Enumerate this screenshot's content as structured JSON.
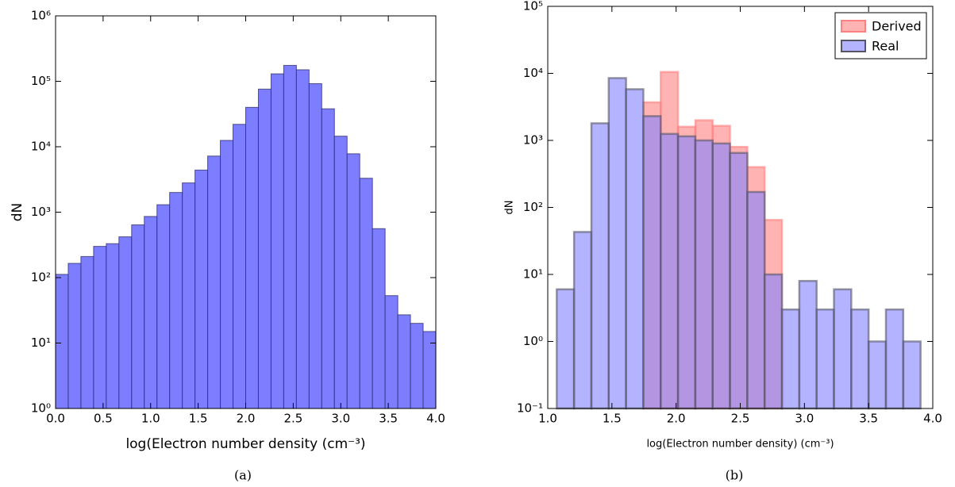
{
  "chart_data": [
    {
      "type": "histogram",
      "caption": "(a)",
      "ylabel": "dN",
      "xlabel": "log(Electron number density (cm⁻³)",
      "color": "#6666ff",
      "edgecolor": "#333366",
      "log_y": true,
      "bins": [
        0,
        0.1333,
        0.2667,
        0.4,
        0.5333,
        0.6667,
        0.8,
        0.9333,
        1.0667,
        1.2,
        1.3333,
        1.4667,
        1.6,
        1.7333,
        1.8667,
        2.0,
        2.1333,
        2.2667,
        2.4,
        2.5333,
        2.6667,
        2.8,
        2.9333,
        3.0667,
        3.2,
        3.3333,
        3.4667,
        3.6,
        3.7333,
        3.8667,
        4.0
      ],
      "values": [
        112,
        165,
        210,
        300,
        330,
        420,
        640,
        860,
        1300,
        2000,
        2800,
        4400,
        7200,
        12500,
        22000,
        40000,
        76000,
        130000,
        175000,
        150000,
        92000,
        38000,
        14500,
        7800,
        3300,
        560,
        53,
        27,
        20,
        15
      ],
      "xlim": [
        0,
        4
      ],
      "xticks": [
        {
          "value": 0,
          "label": "0.0"
        },
        {
          "value": 0.5,
          "label": "0.5"
        },
        {
          "value": 1,
          "label": "1.0"
        },
        {
          "value": 1.5,
          "label": "1.5"
        },
        {
          "value": 2,
          "label": "2.0"
        },
        {
          "value": 2.5,
          "label": "2.5"
        },
        {
          "value": 3,
          "label": "3.0"
        },
        {
          "value": 3.5,
          "label": "3.5"
        },
        {
          "value": 4,
          "label": "4.0"
        }
      ],
      "ylim": [
        1,
        1000000
      ],
      "yticks": [
        {
          "value": 1,
          "label": "10⁰"
        },
        {
          "value": 10,
          "label": "10¹"
        },
        {
          "value": 100,
          "label": "10²"
        },
        {
          "value": 1000,
          "label": "10³"
        },
        {
          "value": 10000,
          "label": "10⁴"
        },
        {
          "value": 100000,
          "label": "10⁵"
        },
        {
          "value": 1000000,
          "label": "10⁶"
        }
      ]
    },
    {
      "type": "histogram",
      "caption": "(b)",
      "ylabel": "dN",
      "xlabel": "log(Electron number density) (cm⁻³)",
      "log_y": true,
      "legend": "upper right",
      "series": [
        {
          "name": "Derived",
          "color": "#ff8080",
          "edgecolor": "#ff8080",
          "bins": [
            1.745,
            1.88,
            2.015,
            2.15,
            2.285,
            2.42,
            2.555,
            2.69,
            2.825
          ],
          "values": [
            3700,
            10500,
            1600,
            2000,
            1650,
            800,
            400,
            65
          ]
        },
        {
          "name": "Real",
          "color": "#8080ff",
          "edgecolor": "#555566",
          "bins": [
            1.07,
            1.205,
            1.34,
            1.475,
            1.61,
            1.745,
            1.88,
            2.015,
            2.15,
            2.285,
            2.42,
            2.555,
            2.69,
            2.825,
            2.96,
            3.095,
            3.23,
            3.365,
            3.5,
            3.635,
            3.77,
            3.905
          ],
          "values": [
            6,
            43,
            1800,
            8500,
            5800,
            2300,
            1250,
            1150,
            1000,
            900,
            650,
            170,
            10,
            3,
            8,
            3,
            6,
            3,
            1,
            3,
            1
          ]
        }
      ],
      "xlim": [
        1,
        4
      ],
      "xticks": [
        {
          "value": 1,
          "label": "1.0"
        },
        {
          "value": 1.5,
          "label": "1.5"
        },
        {
          "value": 2,
          "label": "2.0"
        },
        {
          "value": 2.5,
          "label": "2.5"
        },
        {
          "value": 3,
          "label": "3.0"
        },
        {
          "value": 3.5,
          "label": "3.5"
        },
        {
          "value": 4,
          "label": "4.0"
        }
      ],
      "ylim": [
        0.1,
        100000
      ],
      "yticks": [
        {
          "value": 0.1,
          "label": "10⁻¹"
        },
        {
          "value": 1,
          "label": "10⁰"
        },
        {
          "value": 10,
          "label": "10¹"
        },
        {
          "value": 100,
          "label": "10²"
        },
        {
          "value": 1000,
          "label": "10³"
        },
        {
          "value": 10000,
          "label": "10⁴"
        },
        {
          "value": 100000,
          "label": "10⁵"
        }
      ]
    }
  ]
}
